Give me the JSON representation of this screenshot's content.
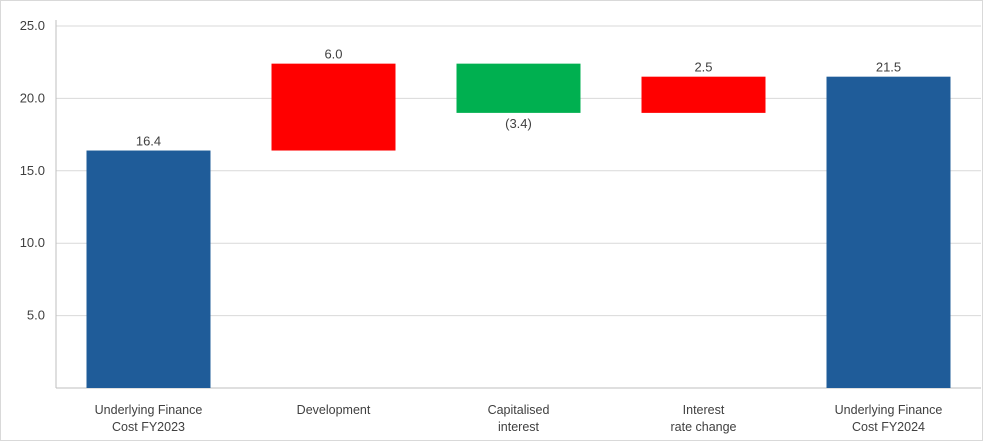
{
  "chart_data": {
    "type": "waterfall",
    "title": "",
    "xlabel": "",
    "ylabel": "",
    "ylim": [
      0,
      25
    ],
    "yticks": [
      "5.0",
      "10.0",
      "15.0",
      "20.0",
      "25.0"
    ],
    "grid": true,
    "legend": "none",
    "colors": {
      "total": "#1f5c99",
      "increase": "#ff0000",
      "decrease": "#00b050"
    },
    "bars": [
      {
        "category": [
          "Underlying Finance",
          "Cost FY2023"
        ],
        "kind": "total",
        "value": 16.4,
        "label": "16.4"
      },
      {
        "category": [
          "Development"
        ],
        "kind": "increase",
        "value": 6.0,
        "label": "6.0"
      },
      {
        "category": [
          "Capitalised",
          "interest"
        ],
        "kind": "decrease",
        "value": -3.4,
        "label": "(3.4)"
      },
      {
        "category": [
          "Interest",
          "rate change"
        ],
        "kind": "increase",
        "value": 2.5,
        "label": "2.5"
      },
      {
        "category": [
          "Underlying Finance",
          "Cost FY2024"
        ],
        "kind": "total",
        "value": 21.5,
        "label": "21.5"
      }
    ]
  }
}
